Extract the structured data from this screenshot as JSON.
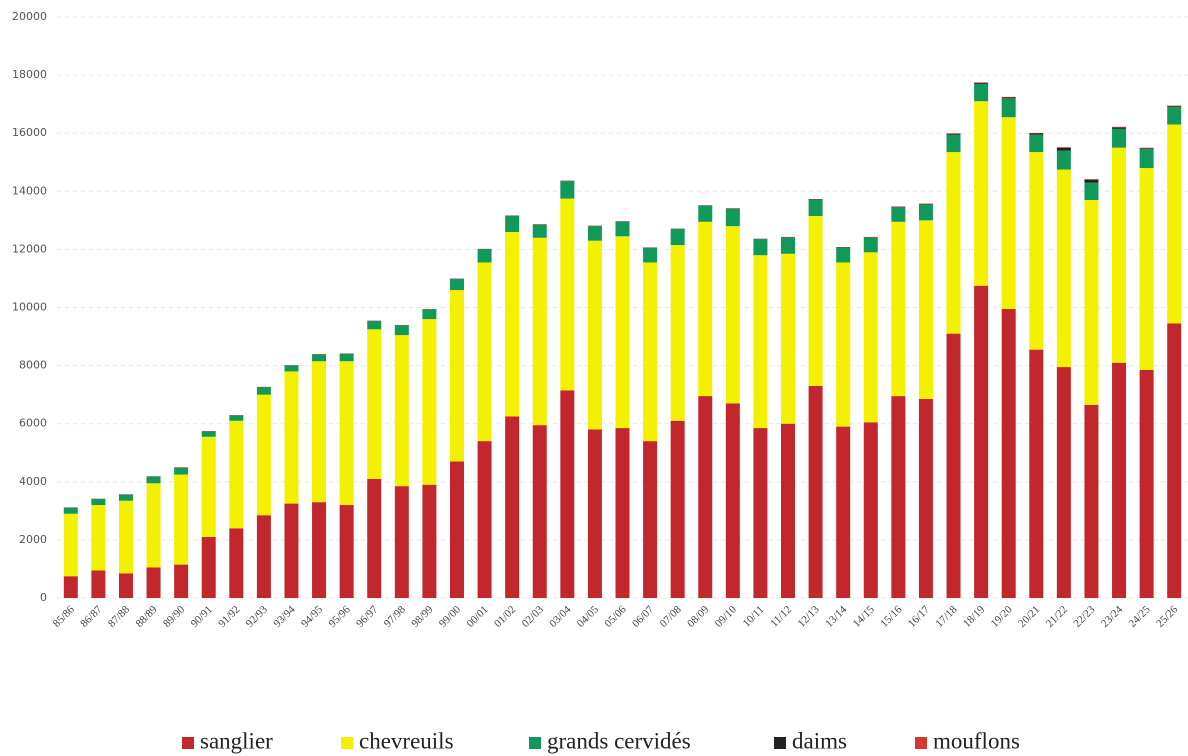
{
  "chart_data": {
    "type": "stacked_bar",
    "categories": [
      "85/86",
      "86/87",
      "87/88",
      "88/89",
      "89/90",
      "90/91",
      "91/92",
      "92/93",
      "93/94",
      "94/95",
      "95/96",
      "96/97",
      "97/98",
      "98/99",
      "99/00",
      "00/01",
      "01/02",
      "02/03",
      "03/04",
      "04/05",
      "05/06",
      "06/07",
      "07/08",
      "08/09",
      "09/10",
      "10/11",
      "11/12",
      "12/13",
      "13/14",
      "14/15",
      "15/16",
      "16/17",
      "17/18",
      "18/19",
      "19/20",
      "20/21",
      "21/22",
      "22/23",
      "23/24",
      "24/25",
      "25/26"
    ],
    "series": [
      {
        "name": "sanglier",
        "color": "#c1272d",
        "values": [
          750,
          950,
          850,
          1050,
          1150,
          2100,
          2400,
          2850,
          3250,
          3300,
          3200,
          4100,
          3850,
          3900,
          4700,
          5400,
          6250,
          5950,
          7150,
          5800,
          5850,
          5400,
          6100,
          6950,
          6700,
          5850,
          6000,
          7300,
          5900,
          6050,
          6950,
          6850,
          9100,
          10750,
          9950,
          8550,
          7950,
          6650,
          8100,
          7850,
          9450
        ]
      },
      {
        "name": "chevreuils",
        "color": "#f3f000",
        "values": [
          2150,
          2250,
          2500,
          2900,
          3100,
          3450,
          3700,
          4150,
          4550,
          4850,
          4950,
          5150,
          5200,
          5700,
          5900,
          6150,
          6350,
          6450,
          6600,
          6500,
          6600,
          6150,
          6050,
          6000,
          6100,
          5950,
          5850,
          5850,
          5650,
          5850,
          6000,
          6150,
          6250,
          6350,
          6600,
          6800,
          6800,
          7050,
          7400,
          6950,
          6850
        ]
      },
      {
        "name": "grands cervidés",
        "color": "#11995a",
        "values": [
          200,
          200,
          200,
          220,
          230,
          180,
          180,
          250,
          200,
          230,
          250,
          280,
          330,
          330,
          380,
          450,
          550,
          450,
          600,
          500,
          500,
          500,
          550,
          550,
          600,
          550,
          550,
          550,
          500,
          500,
          500,
          550,
          600,
          600,
          650,
          600,
          650,
          600,
          650,
          650,
          600
        ]
      },
      {
        "name": "daims",
        "color": "#222222",
        "values": [
          10,
          10,
          10,
          10,
          10,
          10,
          10,
          10,
          10,
          10,
          10,
          10,
          10,
          10,
          10,
          10,
          10,
          10,
          10,
          10,
          10,
          10,
          10,
          10,
          10,
          10,
          20,
          20,
          20,
          20,
          20,
          20,
          30,
          30,
          30,
          40,
          100,
          100,
          50,
          30,
          30
        ]
      },
      {
        "name": "mouflons",
        "color": "#d23a32",
        "values": [
          10,
          10,
          10,
          10,
          10,
          10,
          10,
          10,
          10,
          10,
          10,
          10,
          10,
          10,
          10,
          10,
          10,
          10,
          10,
          10,
          10,
          10,
          10,
          10,
          10,
          10,
          10,
          10,
          10,
          10,
          10,
          10,
          20,
          20,
          20,
          20,
          20,
          20,
          20,
          20,
          20
        ]
      }
    ],
    "ylim": [
      0,
      20000
    ],
    "yticks": [
      0,
      2000,
      4000,
      6000,
      8000,
      10000,
      12000,
      14000,
      16000,
      18000,
      20000
    ],
    "grid": true
  }
}
